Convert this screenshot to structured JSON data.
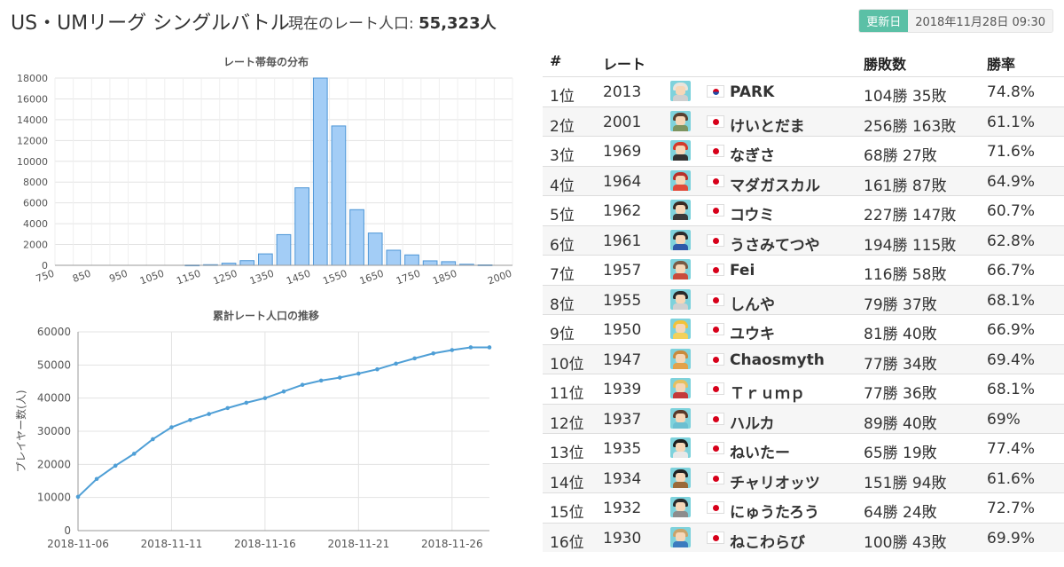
{
  "header": {
    "title": "US・UMリーグ シングルバトル",
    "population_label": "現在のレート人口:",
    "population_value": "55,323人",
    "updated_label": "更新日",
    "updated_value": "2018年11月28日 09:30"
  },
  "charts": [
    {
      "type": "bar",
      "title": "レート帯毎の分布",
      "xlabel": "",
      "ylabel": "",
      "x_tick_labels": [
        "750",
        "850",
        "950",
        "1050",
        "1150",
        "1250",
        "1350",
        "1450",
        "1550",
        "1650",
        "1750",
        "1850",
        "2000"
      ],
      "bins": [
        750,
        800,
        850,
        900,
        950,
        1000,
        1050,
        1100,
        1150,
        1200,
        1250,
        1300,
        1350,
        1400,
        1450,
        1500,
        1550,
        1600,
        1650,
        1700,
        1750,
        1800,
        1850,
        1900,
        1950
      ],
      "values": [
        0,
        0,
        0,
        0,
        0,
        0,
        0,
        20,
        60,
        200,
        450,
        1100,
        2950,
        7450,
        18000,
        13400,
        5350,
        3100,
        1450,
        1000,
        430,
        350,
        100,
        40,
        0
      ],
      "ylim": [
        0,
        18000
      ],
      "y_ticks": [
        0,
        2000,
        4000,
        6000,
        8000,
        10000,
        12000,
        14000,
        16000,
        18000
      ],
      "grid": true,
      "bar_color": "#a3cdf6",
      "bar_border": "#4c95d6"
    },
    {
      "type": "line",
      "title": "累計レート人口の推移",
      "xlabel": "",
      "ylabel": "プレイヤー数(人)",
      "x_tick_labels": [
        "2018-11-06",
        "2018-11-11",
        "2018-11-16",
        "2018-11-21",
        "2018-11-26"
      ],
      "x": [
        "2018-11-06",
        "2018-11-07",
        "2018-11-08",
        "2018-11-09",
        "2018-11-10",
        "2018-11-11",
        "2018-11-12",
        "2018-11-13",
        "2018-11-14",
        "2018-11-15",
        "2018-11-16",
        "2018-11-17",
        "2018-11-18",
        "2018-11-19",
        "2018-11-20",
        "2018-11-21",
        "2018-11-22",
        "2018-11-23",
        "2018-11-24",
        "2018-11-25",
        "2018-11-26",
        "2018-11-27",
        "2018-11-28"
      ],
      "values": [
        10200,
        15600,
        19600,
        23200,
        27600,
        31200,
        33400,
        35200,
        37000,
        38600,
        40000,
        42000,
        44000,
        45300,
        46200,
        47400,
        48700,
        50400,
        52000,
        53500,
        54500,
        55323,
        55323
      ],
      "ylim": [
        0,
        60000
      ],
      "y_ticks": [
        0,
        10000,
        20000,
        30000,
        40000,
        50000,
        60000
      ],
      "grid": true,
      "line_color": "#4f9fd6"
    }
  ],
  "ranking": {
    "columns": {
      "rank": "#",
      "rate": "レート",
      "record": "勝敗数",
      "winrate": "勝率"
    },
    "rows": [
      {
        "rank": "1位",
        "rate": "2013",
        "flag": "kr",
        "name": "PARK",
        "record": "104勝 35敗",
        "winrate": "74.8%",
        "hair": "#e9e4dc",
        "body": "#cfcfcf"
      },
      {
        "rank": "2位",
        "rate": "2001",
        "flag": "jp",
        "name": "けいとだま",
        "record": "256勝 163敗",
        "winrate": "61.1%",
        "hair": "#5a4030",
        "body": "#7d9460"
      },
      {
        "rank": "3位",
        "rate": "1969",
        "flag": "jp",
        "name": "なぎさ",
        "record": "68勝 27敗",
        "winrate": "71.6%",
        "hair": "#d43a2a",
        "body": "#333333"
      },
      {
        "rank": "4位",
        "rate": "1964",
        "flag": "jp",
        "name": "マダガスカル",
        "record": "161勝 87敗",
        "winrate": "64.9%",
        "hair": "#b8312a",
        "body": "#e04a3a"
      },
      {
        "rank": "5位",
        "rate": "1962",
        "flag": "jp",
        "name": "コウミ",
        "record": "227勝 147敗",
        "winrate": "60.7%",
        "hair": "#3a2a22",
        "body": "#3a3a3a"
      },
      {
        "rank": "6位",
        "rate": "1961",
        "flag": "jp",
        "name": "うさみてつや",
        "record": "194勝 115敗",
        "winrate": "62.8%",
        "hair": "#2b2b2b",
        "body": "#2f5aa8"
      },
      {
        "rank": "7位",
        "rate": "1957",
        "flag": "jp",
        "name": "Fei",
        "record": "116勝 58敗",
        "winrate": "66.7%",
        "hair": "#7a5a44",
        "body": "#c94b3c"
      },
      {
        "rank": "8位",
        "rate": "1955",
        "flag": "jp",
        "name": "しんや",
        "record": "79勝 37敗",
        "winrate": "68.1%",
        "hair": "#2a2a2a",
        "body": "#d0d0d0"
      },
      {
        "rank": "9位",
        "rate": "1950",
        "flag": "jp",
        "name": "ユウキ",
        "record": "81勝 40敗",
        "winrate": "66.9%",
        "hair": "#f1c23a",
        "body": "#f3d15a"
      },
      {
        "rank": "10位",
        "rate": "1947",
        "flag": "jp",
        "name": "Chaosmyth",
        "record": "77勝 34敗",
        "winrate": "69.4%",
        "hair": "#c98a3d",
        "body": "#e2a24a"
      },
      {
        "rank": "11位",
        "rate": "1939",
        "flag": "jp",
        "name": "Ｔｒｕｍｐ",
        "record": "77勝 36敗",
        "winrate": "68.1%",
        "hair": "#e6c060",
        "body": "#c43a3a"
      },
      {
        "rank": "12位",
        "rate": "1937",
        "flag": "jp",
        "name": "ハルカ",
        "record": "89勝 40敗",
        "winrate": "69%",
        "hair": "#5a3a2a",
        "body": "#6bbfd1"
      },
      {
        "rank": "13位",
        "rate": "1935",
        "flag": "jp",
        "name": "ねいたー",
        "record": "65勝 19敗",
        "winrate": "77.4%",
        "hair": "#1e1e1e",
        "body": "#e8e8e8"
      },
      {
        "rank": "14位",
        "rate": "1934",
        "flag": "jp",
        "name": "チャリオッツ",
        "record": "151勝 94敗",
        "winrate": "61.6%",
        "hair": "#222222",
        "body": "#9a6a3a"
      },
      {
        "rank": "15位",
        "rate": "1932",
        "flag": "jp",
        "name": "にゅうたろう",
        "record": "64勝 24敗",
        "winrate": "72.7%",
        "hair": "#2a2a2a",
        "body": "#8d8d8d"
      },
      {
        "rank": "16位",
        "rate": "1930",
        "flag": "jp",
        "name": "ねこわらび",
        "record": "100勝 43敗",
        "winrate": "69.9%",
        "hair": "#caa36a",
        "body": "#3b7bbf"
      }
    ]
  }
}
